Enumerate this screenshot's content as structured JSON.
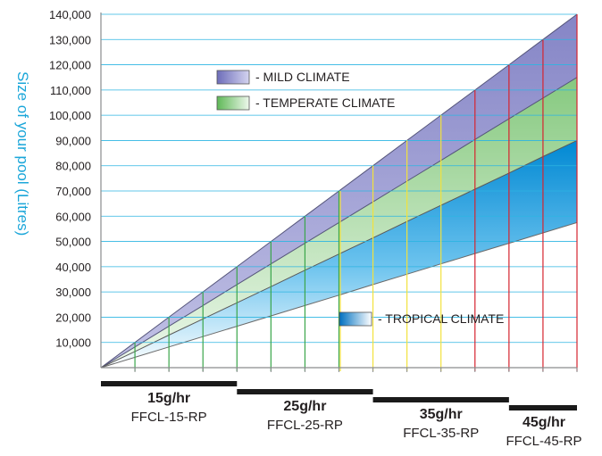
{
  "chart_data": {
    "type": "area",
    "title": "",
    "ylabel": "Size of your pool (Litres)",
    "xlabel": "",
    "ylim": [
      0,
      140000
    ],
    "yticks": [
      10000,
      20000,
      30000,
      40000,
      50000,
      60000,
      70000,
      80000,
      90000,
      100000,
      110000,
      120000,
      130000,
      140000
    ],
    "ytick_labels": [
      "10,000",
      "20,000",
      "30,000",
      "40,000",
      "50,000",
      "60,000",
      "70,000",
      "80,000",
      "90,000",
      "100,000",
      "110,000",
      "120,000",
      "130,000",
      "140,000"
    ],
    "x_steps": 14,
    "grid": true,
    "series": [
      {
        "name": "MILD CLIMATE",
        "upper": [
          0,
          10000,
          20000,
          30000,
          40000,
          50000,
          60000,
          70000,
          80000,
          90000,
          100000,
          110000,
          120000,
          130000,
          140000
        ],
        "color_top": "#8f8fcc",
        "color_bottom": "#b9b9e3"
      },
      {
        "name": "TEMPERATE CLIMATE",
        "upper": [
          0,
          8200,
          16400,
          24600,
          32900,
          41100,
          49300,
          57500,
          65700,
          73900,
          82100,
          90400,
          98600,
          106800,
          115000
        ],
        "color_top": "#93cf8c",
        "color_bottom": "#e5f4e2"
      },
      {
        "name": "TROPICAL CLIMATE",
        "upper": [
          0,
          6400,
          12900,
          19300,
          25700,
          32100,
          38600,
          45000,
          51400,
          57900,
          64300,
          70700,
          77100,
          83600,
          90000
        ],
        "lower": [
          0,
          4100,
          8200,
          12300,
          16400,
          20500,
          24600,
          28700,
          32900,
          37000,
          41100,
          45200,
          49300,
          53400,
          57500
        ],
        "color_top": "#0090d8",
        "color_bottom": "#ffffff"
      }
    ],
    "verticals": [
      {
        "step": 1,
        "color": "#3aa64a"
      },
      {
        "step": 2,
        "color": "#3aa64a"
      },
      {
        "step": 3,
        "color": "#3aa64a"
      },
      {
        "step": 4,
        "color": "#3aa64a"
      },
      {
        "step": 5,
        "color": "#3aa64a"
      },
      {
        "step": 6,
        "color": "#3aa64a"
      },
      {
        "step": 7,
        "color": "#3aa64a"
      },
      {
        "step": 7,
        "color": "#f2e23c"
      },
      {
        "step": 8,
        "color": "#f2e23c"
      },
      {
        "step": 9,
        "color": "#f2e23c"
      },
      {
        "step": 10,
        "color": "#f2e23c"
      },
      {
        "step": 11,
        "color": "#d6242f"
      },
      {
        "step": 12,
        "color": "#d6242f"
      },
      {
        "step": 13,
        "color": "#d6242f"
      },
      {
        "step": 14,
        "color": "#d6242f"
      }
    ],
    "legend": [
      {
        "label": "- MILD CLIMATE",
        "swatch": "mild"
      },
      {
        "label": "- TEMPERATE CLIMATE",
        "swatch": "temperate"
      },
      {
        "label": "- TROPICAL CLIMATE",
        "swatch": "tropical"
      }
    ],
    "grid_color": "#2cb5e2",
    "axis_color": "#8a8c8e"
  },
  "models": [
    {
      "rate": "15g/hr",
      "code": "FFCL-15-RP",
      "from_step": 0,
      "to_step": 4
    },
    {
      "rate": "25g/hr",
      "code": "FFCL-25-RP",
      "from_step": 4,
      "to_step": 8
    },
    {
      "rate": "35g/hr",
      "code": "FFCL-35-RP",
      "from_step": 8,
      "to_step": 12
    },
    {
      "rate": "45g/hr",
      "code": "FFCL-45-RP",
      "from_step": 12,
      "to_step": 14
    }
  ]
}
